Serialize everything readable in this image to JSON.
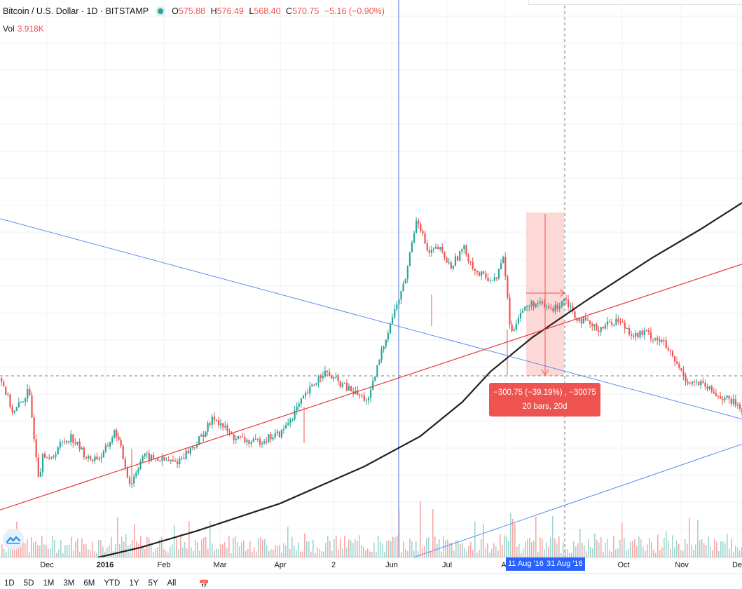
{
  "colors": {
    "up": "#26a69a",
    "down": "#ef5350",
    "ma": "#222222",
    "red_trendline": "#e53935",
    "blue_trendline": "#5b8def",
    "measure_fill": "#fcd1d0",
    "accent": "#2962ff"
  },
  "legend": {
    "symbol": "Bitcoin / U.S. Dollar · 1D · BITSTAMP",
    "o_key": "O",
    "o_val": "575.88",
    "h_key": "H",
    "h_val": "576.49",
    "l_key": "L",
    "l_val": "568.40",
    "c_key": "C",
    "c_val": "570.75",
    "change": "−5.16 (−0.90%)",
    "vol_label": "Vol",
    "vol_value": "3.918K"
  },
  "measure": {
    "line1": "−300.75 (−39.19%) , −30075",
    "line2": "20 bars, 20d"
  },
  "date_range_labels": [
    "11 Aug '16",
    "31 Aug '16"
  ],
  "range_buttons": [
    "1D",
    "5D",
    "1M",
    "3M",
    "6M",
    "YTD",
    "1Y",
    "5Y",
    "All"
  ],
  "calendar_icon": "calendar-icon",
  "chart_data": {
    "type": "candlestick",
    "symbol": "Bitcoin / U.S. Dollar",
    "interval": "1D",
    "exchange": "BITSTAMP",
    "x_tick_labels": [
      "Dec",
      "2016",
      "Feb",
      "Mar",
      "Apr",
      "2",
      "Jun",
      "Jul",
      "A",
      "Oct",
      "Nov",
      "De"
    ],
    "grid": true,
    "series": [
      {
        "name": "BTCUSD",
        "kind": "candles",
        "points": [
          [
            0,
            0.78
          ],
          [
            18,
            0.56
          ],
          [
            40,
            0.7
          ],
          [
            55,
            0.15
          ],
          [
            60,
            0.34
          ],
          [
            70,
            0.26
          ],
          [
            82,
            0.36
          ],
          [
            100,
            0.42
          ],
          [
            125,
            0.28
          ],
          [
            145,
            0.3
          ],
          [
            164,
            0.46
          ],
          [
            185,
            0.12
          ],
          [
            202,
            0.3
          ],
          [
            223,
            0.28
          ],
          [
            250,
            0.26
          ],
          [
            280,
            0.38
          ],
          [
            305,
            0.54
          ],
          [
            330,
            0.42
          ],
          [
            360,
            0.38
          ],
          [
            400,
            0.44
          ],
          [
            430,
            0.64
          ],
          [
            460,
            0.82
          ],
          [
            500,
            0.7
          ],
          [
            525,
            0.64
          ],
          [
            542,
            0.92
          ],
          [
            556,
            1.12
          ],
          [
            576,
            1.36
          ],
          [
            594,
            1.78
          ],
          [
            610,
            1.54
          ],
          [
            625,
            1.58
          ],
          [
            642,
            1.46
          ],
          [
            660,
            1.58
          ],
          [
            680,
            1.42
          ],
          [
            705,
            1.38
          ],
          [
            718,
            1.52
          ],
          [
            728,
            1.04
          ],
          [
            740,
            1.18
          ],
          [
            760,
            1.24
          ],
          [
            790,
            1.2
          ],
          [
            805,
            1.28
          ],
          [
            820,
            1.16
          ],
          [
            850,
            1.08
          ],
          [
            880,
            1.14
          ],
          [
            905,
            1.04
          ],
          [
            920,
            1.06
          ],
          [
            945,
            1.0
          ],
          [
            962,
            0.88
          ],
          [
            980,
            0.76
          ],
          [
            1000,
            0.74
          ],
          [
            1020,
            0.68
          ],
          [
            1050,
            0.62
          ],
          [
            1059,
            0.58
          ]
        ]
      },
      {
        "name": "Moving Average",
        "kind": "line",
        "points": [
          [
            140,
            0
          ],
          [
            200,
            0.15
          ],
          [
            280,
            0.4
          ],
          [
            400,
            0.82
          ],
          [
            520,
            1.38
          ],
          [
            600,
            1.84
          ],
          [
            660,
            2.36
          ],
          [
            700,
            2.82
          ],
          [
            760,
            3.34
          ],
          [
            840,
            3.92
          ],
          [
            930,
            4.54
          ],
          [
            1000,
            4.98
          ],
          [
            1059,
            5.38
          ]
        ]
      },
      {
        "name": "Support trendline",
        "kind": "line",
        "points": [
          [
            0,
            0.72
          ],
          [
            1059,
            4.45
          ]
        ]
      },
      {
        "name": "Resistance trendline",
        "kind": "line",
        "points": [
          [
            0,
            5.14
          ],
          [
            1059,
            2.1
          ]
        ]
      },
      {
        "name": "Lower trendline",
        "kind": "line",
        "points": [
          [
            590,
            0
          ],
          [
            1059,
            1.72
          ]
        ]
      }
    ]
  }
}
